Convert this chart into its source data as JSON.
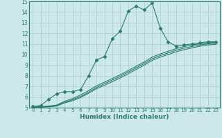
{
  "xlabel": "Humidex (Indice chaleur)",
  "bg_color": "#cce8e8",
  "grid_color": "#b0d0d0",
  "line_color": "#2a7a6e",
  "xlim": [
    -0.5,
    23.5
  ],
  "ylim": [
    5,
    15
  ],
  "xticks": [
    0,
    1,
    2,
    3,
    4,
    5,
    6,
    7,
    8,
    9,
    10,
    11,
    12,
    13,
    14,
    15,
    16,
    17,
    18,
    19,
    20,
    21,
    22,
    23
  ],
  "yticks": [
    5,
    6,
    7,
    8,
    9,
    10,
    11,
    12,
    13,
    14,
    15
  ],
  "series": [
    {
      "x": [
        0,
        1,
        2,
        3,
        4,
        5,
        6,
        7,
        8,
        9,
        10,
        11,
        12,
        13,
        14,
        15,
        16,
        17,
        18,
        19,
        20,
        21,
        22,
        23
      ],
      "y": [
        5.1,
        5.2,
        5.8,
        6.3,
        6.5,
        6.5,
        6.7,
        8.0,
        9.5,
        9.8,
        11.5,
        12.2,
        14.1,
        14.55,
        14.2,
        14.85,
        12.5,
        11.2,
        10.8,
        10.9,
        11.0,
        11.1,
        11.2,
        11.2
      ],
      "marker": "D",
      "markersize": 2.5
    },
    {
      "x": [
        0,
        1,
        2,
        3,
        4,
        5,
        6,
        7,
        8,
        9,
        10,
        11,
        12,
        13,
        14,
        15,
        16,
        17,
        18,
        19,
        20,
        21,
        22,
        23
      ],
      "y": [
        5.05,
        5.1,
        5.15,
        5.25,
        5.6,
        5.85,
        6.2,
        6.6,
        7.05,
        7.4,
        7.75,
        8.1,
        8.5,
        8.9,
        9.3,
        9.75,
        10.05,
        10.3,
        10.55,
        10.75,
        10.9,
        11.0,
        11.1,
        11.15
      ],
      "marker": null,
      "markersize": 0
    },
    {
      "x": [
        0,
        1,
        2,
        3,
        4,
        5,
        6,
        7,
        8,
        9,
        10,
        11,
        12,
        13,
        14,
        15,
        16,
        17,
        18,
        19,
        20,
        21,
        22,
        23
      ],
      "y": [
        5.05,
        5.08,
        5.1,
        5.2,
        5.5,
        5.75,
        6.05,
        6.45,
        6.9,
        7.25,
        7.6,
        7.95,
        8.35,
        8.75,
        9.15,
        9.6,
        9.9,
        10.15,
        10.4,
        10.6,
        10.75,
        10.9,
        11.0,
        11.05
      ],
      "marker": null,
      "markersize": 0
    },
    {
      "x": [
        0,
        1,
        2,
        3,
        4,
        5,
        6,
        7,
        8,
        9,
        10,
        11,
        12,
        13,
        14,
        15,
        16,
        17,
        18,
        19,
        20,
        21,
        22,
        23
      ],
      "y": [
        5.0,
        5.05,
        5.08,
        5.15,
        5.45,
        5.65,
        5.95,
        6.35,
        6.78,
        7.1,
        7.45,
        7.8,
        8.2,
        8.6,
        9.0,
        9.45,
        9.75,
        10.0,
        10.25,
        10.45,
        10.62,
        10.78,
        10.9,
        10.95
      ],
      "marker": null,
      "markersize": 0
    }
  ]
}
